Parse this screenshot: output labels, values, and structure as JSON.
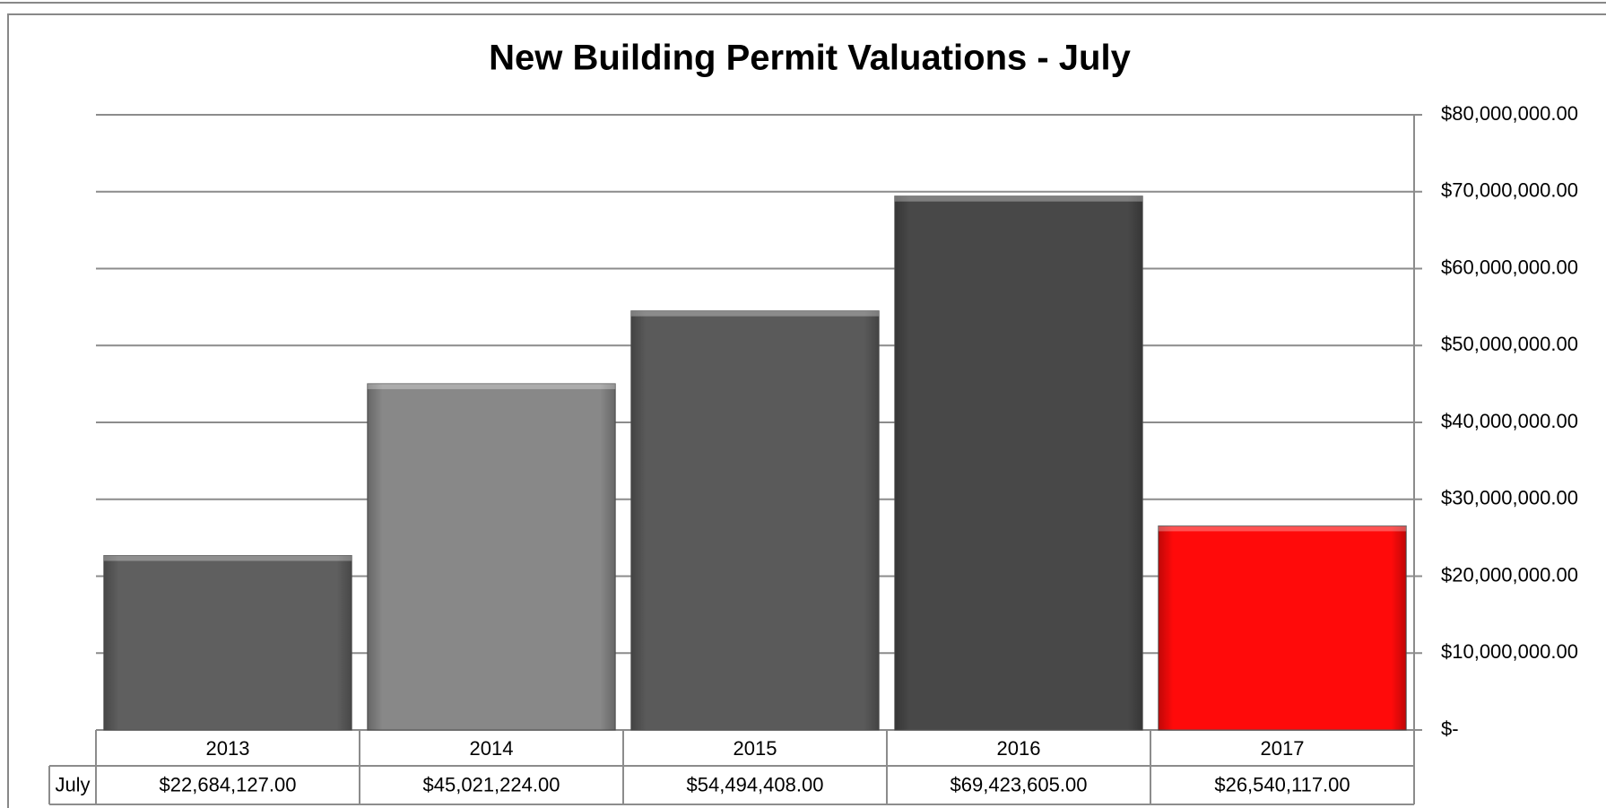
{
  "chart_data": {
    "type": "bar",
    "title": "New Building Permit Valuations - July",
    "categories": [
      "2013",
      "2014",
      "2015",
      "2016",
      "2017"
    ],
    "series": [
      {
        "name": "July",
        "values": [
          22684127,
          45021224,
          54494408,
          69423605,
          26540117
        ],
        "value_labels": [
          "$22,684,127.00",
          "$45,021,224.00",
          "$54,494,408.00",
          "$69,423,605.00",
          "$26,540,117.00"
        ]
      }
    ],
    "colors": [
      "#5f5f5f",
      "#888888",
      "#5a5a5a",
      "#484848",
      "#ff0a0a"
    ],
    "ylim": [
      0,
      80000000
    ],
    "yticks": [
      {
        "value": 0,
        "label": "$-"
      },
      {
        "value": 10000000,
        "label": "$10,000,000.00"
      },
      {
        "value": 20000000,
        "label": "$20,000,000.00"
      },
      {
        "value": 30000000,
        "label": "$30,000,000.00"
      },
      {
        "value": 40000000,
        "label": "$40,000,000.00"
      },
      {
        "value": 50000000,
        "label": "$50,000,000.00"
      },
      {
        "value": 60000000,
        "label": "$60,000,000.00"
      },
      {
        "value": 70000000,
        "label": "$70,000,000.00"
      },
      {
        "value": 80000000,
        "label": "$80,000,000.00"
      }
    ],
    "yaxis_side": "right",
    "grid": true
  }
}
